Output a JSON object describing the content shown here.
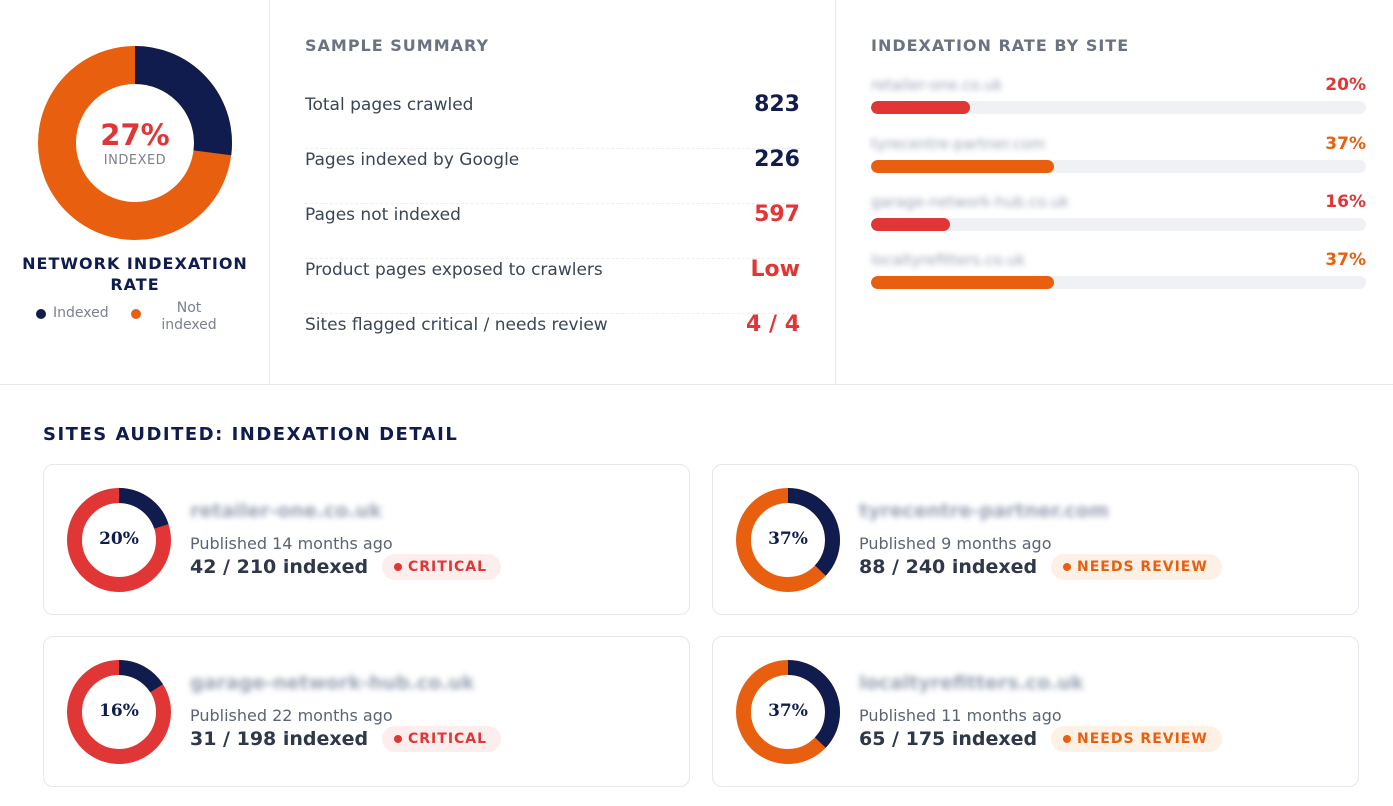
{
  "colors": {
    "navy": "#0f1c4d",
    "orange": "#e8600f",
    "red": "#e03636",
    "track": "#f0f1f4"
  },
  "network": {
    "percent": 27,
    "percent_label": "27%",
    "sub_label": "INDEXED",
    "title": "NETWORK INDEXATION RATE",
    "legend": [
      {
        "label": "Indexed",
        "color": "#0f1c4d"
      },
      {
        "label": "Not indexed",
        "color": "#e8600f"
      }
    ]
  },
  "summary": {
    "title": "SAMPLE SUMMARY",
    "rows": [
      {
        "label": "Total pages crawled",
        "value": "823",
        "color": "#0f1c4d"
      },
      {
        "label": "Pages indexed by Google",
        "value": "226",
        "color": "#0f1c4d"
      },
      {
        "label": "Pages not indexed",
        "value": "597",
        "color": "#e03636"
      },
      {
        "label": "Product pages exposed to crawlers",
        "value": "Low",
        "color": "#e03636"
      },
      {
        "label": "Sites flagged critical / needs review",
        "value": "4 / 4",
        "color": "#e03636"
      }
    ]
  },
  "by_site": {
    "title": "INDEXATION RATE BY SITE",
    "sites": [
      {
        "name": "retailer-one.co.uk",
        "percent": 20,
        "percent_label": "20%",
        "color": "#e03636"
      },
      {
        "name": "tyrecentre-partner.com",
        "percent": 37,
        "percent_label": "37%",
        "color": "#e8600f"
      },
      {
        "name": "garage-network-hub.co.uk",
        "percent": 16,
        "percent_label": "16%",
        "color": "#e03636"
      },
      {
        "name": "localtyrefitters.co.uk",
        "percent": 37,
        "percent_label": "37%",
        "color": "#e8600f"
      }
    ]
  },
  "detail": {
    "title": "SITES AUDITED: INDEXATION DETAIL",
    "cards": [
      {
        "site": "retailer-one.co.uk",
        "percent": 20,
        "percent_label": "20%",
        "published": "Published 14 months ago",
        "indexed": "42 / 210 indexed",
        "status": "CRITICAL",
        "status_type": "critical",
        "ring_color": "#e03636"
      },
      {
        "site": "tyrecentre-partner.com",
        "percent": 37,
        "percent_label": "37%",
        "published": "Published 9 months ago",
        "indexed": "88 / 240 indexed",
        "status": "NEEDS REVIEW",
        "status_type": "review",
        "ring_color": "#e8600f"
      },
      {
        "site": "garage-network-hub.co.uk",
        "percent": 16,
        "percent_label": "16%",
        "published": "Published 22 months ago",
        "indexed": "31 / 198 indexed",
        "status": "CRITICAL",
        "status_type": "critical",
        "ring_color": "#e03636"
      },
      {
        "site": "localtyrefitters.co.uk",
        "percent": 37,
        "percent_label": "37%",
        "published": "Published 11 months ago",
        "indexed": "65 / 175 indexed",
        "status": "NEEDS REVIEW",
        "status_type": "review",
        "ring_color": "#e8600f"
      }
    ]
  }
}
